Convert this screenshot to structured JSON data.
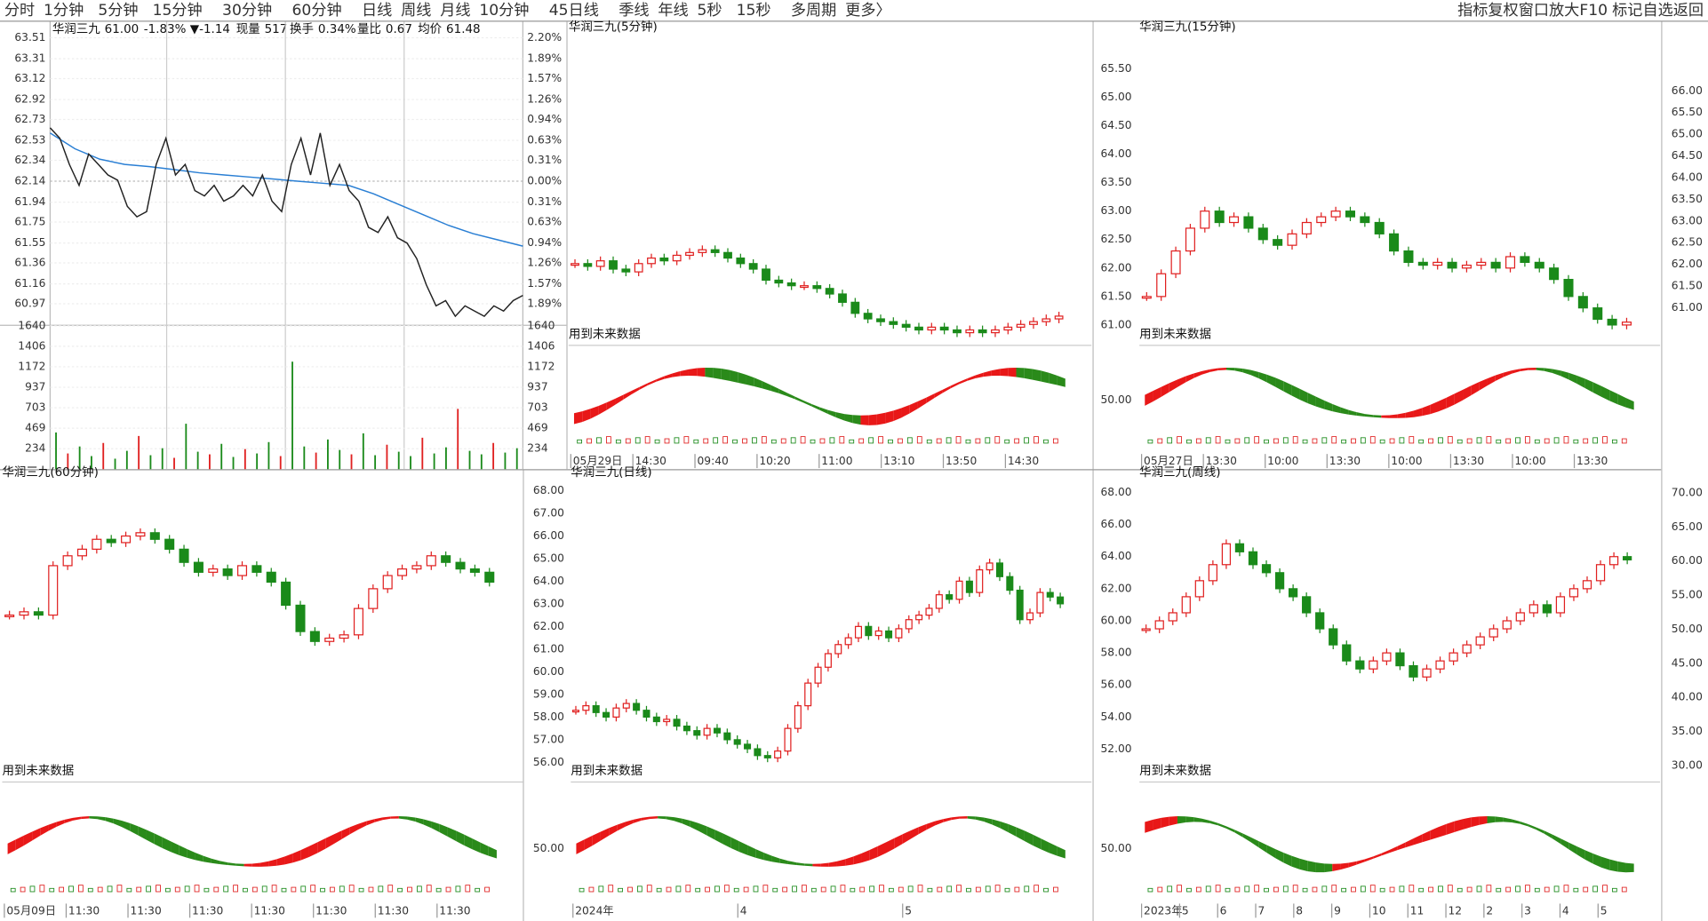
{
  "toolbar": {
    "periods": [
      "分时",
      "1分钟",
      "5分钟",
      "15分钟",
      "30分钟",
      "60分钟",
      "日线",
      "周线",
      "月线",
      "10分钟",
      "45日线",
      "季线",
      "年线",
      "5秒",
      "15秒",
      "多周期",
      "更多〉"
    ],
    "tools": [
      "指标",
      "复权",
      "窗口",
      "放大",
      "F10",
      "标记",
      "自选",
      "返回"
    ]
  },
  "intraday": {
    "name": "华润三九",
    "price": "61.00",
    "change_pct": "-1.83%",
    "change": "▼-1.14",
    "vol_label": "现量",
    "vol": "517",
    "turnover_label": "换手",
    "turnover": "0.34%",
    "ratio_label": "量比",
    "ratio": "0.67",
    "avg_label": "均价",
    "avg": "61.48",
    "ylim": [
      60.78,
      63.58
    ],
    "yticks": [
      63.51,
      63.31,
      63.12,
      62.92,
      62.73,
      62.53,
      62.34,
      62.14,
      61.94,
      61.75,
      61.55,
      61.36,
      61.16,
      60.97
    ],
    "pct_ticks": [
      "2.20%",
      "1.89%",
      "1.57%",
      "1.26%",
      "0.94%",
      "0.63%",
      "0.31%",
      "0.00%",
      "0.31%",
      "0.63%",
      "0.94%",
      "1.26%",
      "1.57%",
      "1.89%"
    ],
    "prices": [
      62.65,
      62.55,
      62.3,
      62.1,
      62.4,
      62.3,
      62.2,
      62.15,
      61.9,
      61.8,
      61.85,
      62.3,
      62.55,
      62.2,
      62.3,
      62.05,
      62.0,
      62.1,
      61.95,
      62.0,
      62.1,
      62.0,
      62.2,
      61.95,
      61.85,
      62.3,
      62.55,
      62.2,
      62.6,
      62.1,
      62.3,
      62.05,
      61.95,
      61.7,
      61.65,
      61.8,
      61.6,
      61.55,
      61.4,
      61.15,
      60.95,
      61.0,
      60.85,
      60.95,
      60.9,
      60.85,
      60.95,
      60.9,
      61.0,
      61.05
    ],
    "avg_prices": [
      62.6,
      62.45,
      62.35,
      62.3,
      62.28,
      62.25,
      62.22,
      62.2,
      62.18,
      62.16,
      62.14,
      62.12,
      62.1,
      62.02,
      61.92,
      61.82,
      61.72,
      61.64,
      61.58,
      61.52
    ],
    "vlim": [
      0,
      1640
    ],
    "vticks": [
      1640,
      1406,
      1172,
      937,
      703,
      469,
      234
    ],
    "volumes": [
      420,
      180,
      260,
      150,
      300,
      120,
      210,
      380,
      160,
      240,
      130,
      520,
      200,
      170,
      290,
      140,
      230,
      180,
      310,
      150,
      1230,
      260,
      190,
      340,
      220,
      170,
      410,
      160,
      280,
      200,
      150,
      360,
      180,
      250,
      690,
      210,
      170,
      300,
      190,
      240
    ]
  },
  "panels": {
    "m5": {
      "title": "华润三九(5分钟)",
      "note": "用到未来数据",
      "ylim": [
        60.66,
        66.18
      ],
      "times": [
        "05月29日",
        "14:30",
        "09:40",
        "10:20",
        "11:00",
        "13:10",
        "13:50",
        "14:30"
      ],
      "closes": [
        62.1,
        62.05,
        62.15,
        62.0,
        61.95,
        62.1,
        62.2,
        62.15,
        62.25,
        62.3,
        62.35,
        62.3,
        62.2,
        62.1,
        62.0,
        61.8,
        61.75,
        61.7,
        61.7,
        61.65,
        61.55,
        61.4,
        61.2,
        61.1,
        61.05,
        61.0,
        60.95,
        60.9,
        60.95,
        60.9,
        60.85,
        60.9,
        60.85,
        60.9,
        60.95,
        61.0,
        61.05,
        61.1,
        61.15
      ]
    },
    "m15": {
      "title": "华润三九(15分钟)",
      "note": "用到未来数据",
      "ylim": [
        60.68,
        66.04
      ],
      "yticks": [
        {
          "value": 65.5,
          "label": "65.50"
        },
        {
          "value": 65,
          "label": "65.00"
        },
        {
          "value": 64.5,
          "label": "64.50"
        },
        {
          "value": 64,
          "label": "64.00"
        },
        {
          "value": 63.5,
          "label": "63.50"
        },
        {
          "value": 63,
          "label": "63.00"
        },
        {
          "value": 62.5,
          "label": "62.50"
        },
        {
          "value": 62,
          "label": "62.00"
        },
        {
          "value": 61.5,
          "label": "61.50"
        },
        {
          "value": 61,
          "label": "61.00"
        }
      ],
      "y2lim": [
        60.18,
        67.22
      ],
      "y2ticks": [
        {
          "value": 66,
          "label": "66.00"
        },
        {
          "value": 65.5,
          "label": "65.50"
        },
        {
          "value": 65,
          "label": "65.00"
        },
        {
          "value": 64.5,
          "label": "64.50"
        },
        {
          "value": 64,
          "label": "64.00"
        },
        {
          "value": 63.5,
          "label": "63.50"
        },
        {
          "value": 63,
          "label": "63.00"
        },
        {
          "value": 62.5,
          "label": "62.50"
        },
        {
          "value": 62,
          "label": "62.00"
        },
        {
          "value": 61.5,
          "label": "61.50"
        },
        {
          "value": 61,
          "label": "61.00"
        }
      ],
      "sub_tick": "50.00",
      "times": [
        "05月27日",
        "13:30",
        "10:00",
        "13:30",
        "10:00",
        "13:30",
        "10:00",
        "13:30"
      ],
      "closes": [
        61.5,
        61.9,
        62.3,
        62.7,
        63.0,
        62.8,
        62.9,
        62.7,
        62.5,
        62.4,
        62.6,
        62.8,
        62.9,
        63.0,
        62.9,
        62.8,
        62.6,
        62.3,
        62.1,
        62.05,
        62.1,
        62.0,
        62.05,
        62.1,
        62.0,
        62.2,
        62.1,
        62.0,
        61.8,
        61.5,
        61.3,
        61.1,
        61.0,
        61.05
      ]
    },
    "m60": {
      "title": "华润三九(60分钟)",
      "note": "用到未来数据",
      "ylim": [
        55,
        64
      ],
      "times": [
        "05月09日",
        "11:30",
        "11:30",
        "11:30",
        "11:30",
        "11:30",
        "11:30",
        "11:30"
      ],
      "closes": [
        60.0,
        60.1,
        60.0,
        61.5,
        61.8,
        62.0,
        62.3,
        62.2,
        62.4,
        62.5,
        62.3,
        62.0,
        61.6,
        61.3,
        61.4,
        61.2,
        61.5,
        61.3,
        61.0,
        60.3,
        59.5,
        59.2,
        59.3,
        59.4,
        60.2,
        60.8,
        61.2,
        61.4,
        61.5,
        61.8,
        61.6,
        61.4,
        61.3,
        61.0
      ]
    },
    "day": {
      "title": "华润三九(日线)",
      "note": "用到未来数据",
      "ylim": [
        55.23,
        68.32
      ],
      "yticks": [
        {
          "value": 68,
          "label": "68.00"
        },
        {
          "value": 67,
          "label": "67.00"
        },
        {
          "value": 66,
          "label": "66.00"
        },
        {
          "value": 65,
          "label": "65.00"
        },
        {
          "value": 64,
          "label": "64.00"
        },
        {
          "value": 63,
          "label": "63.00"
        },
        {
          "value": 62,
          "label": "62.00"
        },
        {
          "value": 61,
          "label": "61.00"
        },
        {
          "value": 60,
          "label": "60.00"
        },
        {
          "value": 59,
          "label": "59.00"
        },
        {
          "value": 58,
          "label": "58.00"
        },
        {
          "value": 57,
          "label": "57.00"
        },
        {
          "value": 56,
          "label": "56.00"
        }
      ],
      "sub_tick": "50.00",
      "times": [
        "2024年",
        "4",
        "5"
      ],
      "closes": [
        58.3,
        58.5,
        58.2,
        58.0,
        58.4,
        58.6,
        58.3,
        58.0,
        57.8,
        57.9,
        57.6,
        57.4,
        57.2,
        57.5,
        57.3,
        57.0,
        56.8,
        56.6,
        56.3,
        56.2,
        56.5,
        57.5,
        58.5,
        59.5,
        60.2,
        60.8,
        61.2,
        61.5,
        62.0,
        61.6,
        61.8,
        61.5,
        61.9,
        62.3,
        62.5,
        62.8,
        63.4,
        63.2,
        64.0,
        63.5,
        64.5,
        64.8,
        64.2,
        63.6,
        62.3,
        62.6,
        63.5,
        63.3,
        63.0
      ]
    },
    "week": {
      "title": "华润三九(周线)",
      "note": "用到未来数据",
      "ylim": [
        50.09,
        68.57
      ],
      "yticks": [
        {
          "value": 68,
          "label": "68.00"
        },
        {
          "value": 66,
          "label": "66.00"
        },
        {
          "value": 64,
          "label": "64.00"
        },
        {
          "value": 62,
          "label": "62.00"
        },
        {
          "value": 60,
          "label": "60.00"
        },
        {
          "value": 58,
          "label": "58.00"
        },
        {
          "value": 56,
          "label": "56.00"
        },
        {
          "value": 54,
          "label": "54.00"
        },
        {
          "value": 52,
          "label": "52.00"
        }
      ],
      "y2lim": [
        27.9,
        71.4
      ],
      "y2ticks": [
        {
          "value": 70,
          "label": "70.00"
        },
        {
          "value": 65,
          "label": "65.00"
        },
        {
          "value": 60,
          "label": "60.00"
        },
        {
          "value": 55,
          "label": "55.00"
        },
        {
          "value": 50,
          "label": "50.00"
        },
        {
          "value": 45,
          "label": "45.00"
        },
        {
          "value": 40,
          "label": "40.00"
        },
        {
          "value": 35,
          "label": "35.00"
        },
        {
          "value": 30,
          "label": "30.00"
        }
      ],
      "sub_tick": "50.00",
      "times": [
        "2023年",
        "5",
        "6",
        "7",
        "8",
        "9",
        "10",
        "11",
        "12",
        "2",
        "3",
        "4",
        "5"
      ],
      "closes": [
        59.5,
        60.0,
        60.5,
        61.5,
        62.5,
        63.5,
        64.8,
        64.3,
        63.5,
        63.0,
        62.0,
        61.5,
        60.5,
        59.5,
        58.5,
        57.5,
        57.0,
        57.5,
        58.0,
        57.2,
        56.5,
        57.0,
        57.5,
        58.0,
        58.5,
        59.0,
        59.5,
        60.0,
        60.5,
        61.0,
        60.5,
        61.5,
        62.0,
        62.5,
        63.5,
        64.0,
        63.8
      ]
    }
  }
}
